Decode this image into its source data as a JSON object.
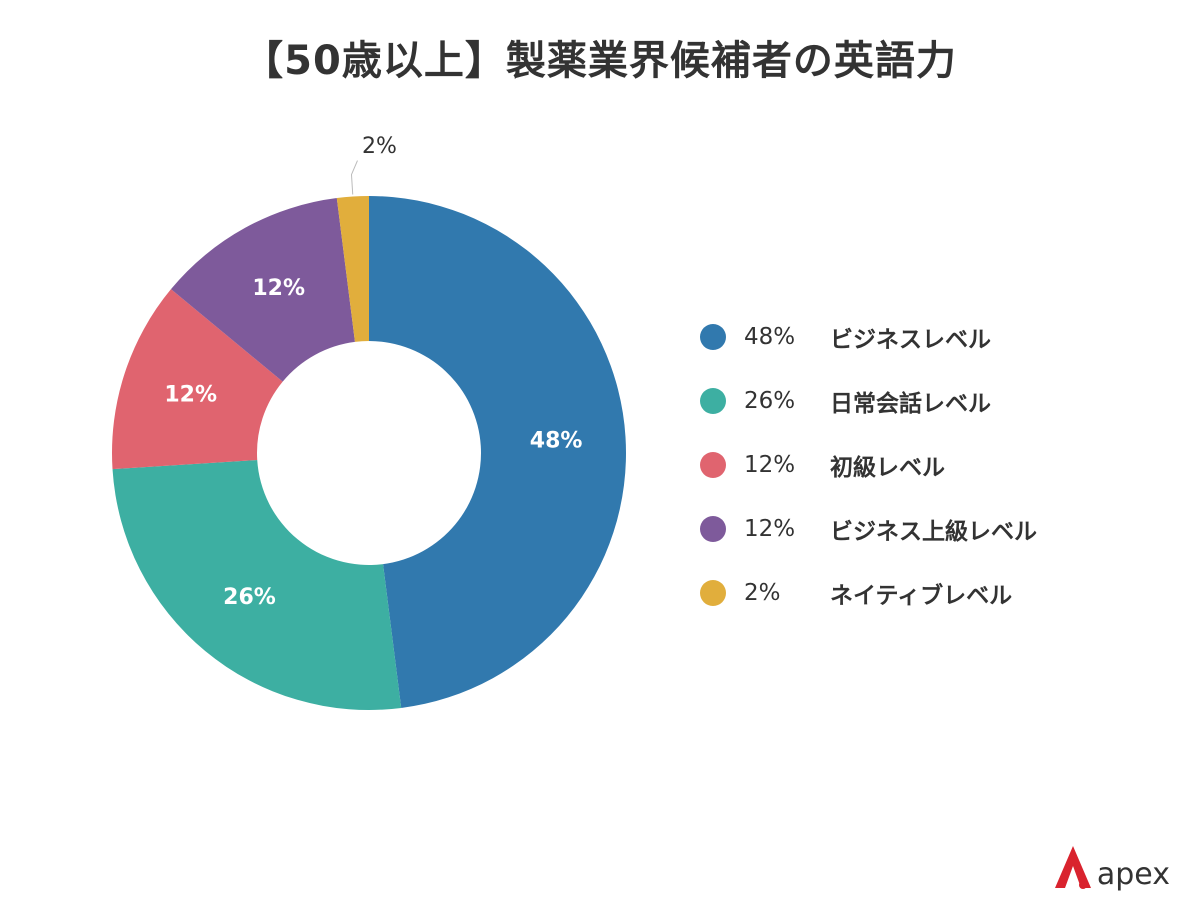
{
  "title": "【50歳以上】製薬業界候補者の英語力",
  "chart_data": {
    "type": "pie",
    "donut": true,
    "title": "【50歳以上】製薬業界候補者の英語力",
    "slices": [
      {
        "name": "ビジネスレベル",
        "value": 48,
        "label": "48%",
        "color": "#3179AE"
      },
      {
        "name": "日常会話レベル",
        "value": 26,
        "label": "26%",
        "color": "#3DAFA2"
      },
      {
        "name": "初級レベル",
        "value": 12,
        "label": "12%",
        "color": "#E0646F"
      },
      {
        "name": "ビジネス上級レベル",
        "value": 12,
        "label": "12%",
        "color": "#7E5A9B"
      },
      {
        "name": "ネイティブレベル",
        "value": 2,
        "label": "2%",
        "color": "#E1AE3C"
      }
    ],
    "legend_position": "right"
  },
  "logo": {
    "text": "apex",
    "color": "#D9232E"
  }
}
